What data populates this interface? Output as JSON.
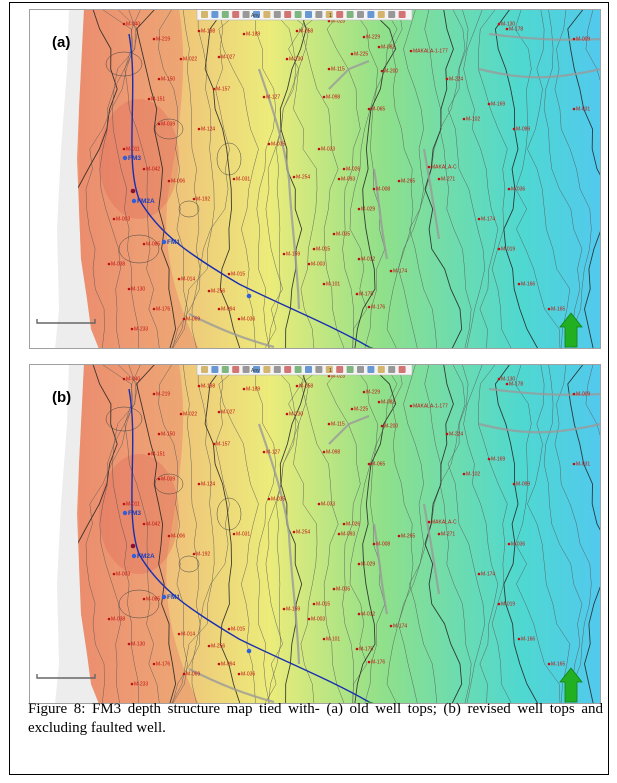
{
  "figure": {
    "caption": "Figure 8: FM3 depth structure map tied with- (a) old well tops; (b) revised well tops and excluding faulted well.",
    "colors": {
      "high": "#e9806a",
      "mid_high": "#f1b07a",
      "mid": "#ecec7a",
      "mid_low": "#8fe08a",
      "low": "#4fd8d0",
      "lowest": "#52c9ee",
      "well_marker": "#c01010",
      "trajectory": "#1a2fb0",
      "north_arrow": "#22b022",
      "fault": "#9a9a9a"
    },
    "toolbar": {
      "zoom_text": "Any",
      "scale_text": "1"
    },
    "panels": [
      {
        "id": "a",
        "label": "(a)",
        "trajectory_markers": [
          "FM3",
          "FM2A",
          "FM1"
        ],
        "wells": [
          "M-040",
          "M-219",
          "M-198",
          "M-189",
          "M-058",
          "M-028",
          "M-229",
          "M-022",
          "M-027",
          "M-230",
          "M-225",
          "M-082",
          "MAKALA-1-177",
          "M-130",
          "M-178",
          "M-009",
          "M-150",
          "M-115",
          "M-200",
          "M-224",
          "M-169",
          "M-102",
          "M-099",
          "M-031",
          "M-151",
          "M-157",
          "M-127",
          "M-098",
          "M-065",
          "M-124",
          "M-035",
          "M-033",
          "M-026",
          "M-011",
          "M-039",
          "M-042",
          "M-006",
          "M-192",
          "M-031",
          "M-254",
          "M-093",
          "M-008",
          "M-265",
          "MAKALA-C",
          "M-271",
          "M-029",
          "M-035",
          "M-015",
          "M-012",
          "M-174",
          "M-159",
          "M-003",
          "M-101",
          "M-175",
          "M-176",
          "M-015",
          "M-256",
          "M-014",
          "M-085",
          "M-003",
          "M-038",
          "M-130",
          "M-176",
          "M-069",
          "M-233",
          "M-094",
          "M-036",
          "M-174",
          "M-019",
          "M-166",
          "M-165",
          "M-036"
        ]
      },
      {
        "id": "b",
        "label": "(b)",
        "trajectory_markers": [
          "FM3",
          "FM2A",
          "FM1"
        ],
        "wells": [
          "M-040",
          "M-219",
          "M-198",
          "M-189",
          "M-058",
          "M-028",
          "M-229",
          "M-022",
          "M-027",
          "M-230",
          "M-225",
          "M-082",
          "MAKALA-1-177",
          "M-130",
          "M-178",
          "M-009",
          "M-150",
          "M-115",
          "M-200",
          "M-224",
          "M-169",
          "M-102",
          "M-099",
          "M-031",
          "M-151",
          "M-157",
          "M-127",
          "M-098",
          "M-065",
          "M-124",
          "M-035",
          "M-033",
          "M-026",
          "M-011",
          "M-039",
          "M-042",
          "M-006",
          "M-192",
          "M-031",
          "M-254",
          "M-093",
          "M-008",
          "M-265",
          "MAKALA-C",
          "M-271",
          "M-029",
          "M-035",
          "M-015",
          "M-012",
          "M-174",
          "M-159",
          "M-003",
          "M-101",
          "M-175",
          "M-176",
          "M-015",
          "M-256",
          "M-014",
          "M-085",
          "M-003",
          "M-038",
          "M-130",
          "M-176",
          "M-069",
          "M-233",
          "M-094",
          "M-036",
          "M-174",
          "M-019",
          "M-166",
          "M-165",
          "M-036"
        ]
      }
    ]
  }
}
